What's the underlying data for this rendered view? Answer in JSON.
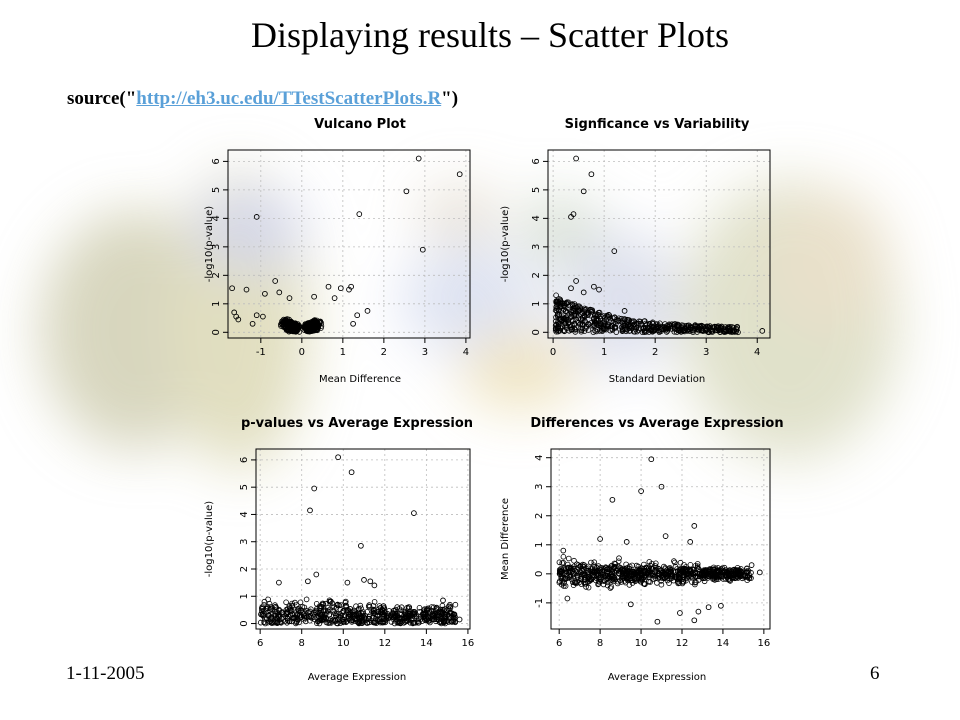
{
  "slide": {
    "title": "Displaying results – Scatter Plots",
    "source_prefix": "source(\"",
    "source_link": "http://eh3.uc.edu/TTestScatterPlots.R",
    "source_suffix": "\")",
    "date": "1-11-2005",
    "page_number": "6"
  },
  "chart_data": [
    {
      "type": "scatter",
      "title": "Vulcano Plot",
      "xlabel": "Mean Difference",
      "ylabel": "-log10(p-value)",
      "xlim": [
        -1.8,
        4.1
      ],
      "ylim": [
        -0.2,
        6.4
      ],
      "xticks": [
        -1,
        0,
        1,
        2,
        3,
        4
      ],
      "yticks": [
        0,
        1,
        2,
        3,
        4,
        5,
        6
      ],
      "grid": true,
      "points": [
        [
          -1.1,
          4.05
        ],
        [
          1.4,
          4.15
        ],
        [
          2.55,
          4.95
        ],
        [
          2.85,
          6.1
        ],
        [
          2.95,
          2.9
        ],
        [
          3.85,
          5.55
        ],
        [
          -1.7,
          1.55
        ],
        [
          -1.35,
          1.5
        ],
        [
          -0.65,
          1.8
        ],
        [
          -0.9,
          1.35
        ],
        [
          -0.55,
          1.4
        ],
        [
          0.65,
          1.6
        ],
        [
          0.95,
          1.55
        ],
        [
          1.15,
          1.5
        ],
        [
          1.2,
          1.6
        ],
        [
          0.3,
          1.25
        ],
        [
          -0.3,
          1.2
        ],
        [
          0.8,
          1.2
        ],
        [
          -1.65,
          0.7
        ],
        [
          -1.6,
          0.55
        ],
        [
          -1.55,
          0.45
        ],
        [
          -1.1,
          0.6
        ],
        [
          -0.95,
          0.55
        ],
        [
          1.6,
          0.75
        ],
        [
          1.35,
          0.6
        ],
        [
          -1.2,
          0.3
        ],
        [
          1.25,
          0.3
        ]
      ]
    },
    {
      "type": "scatter",
      "title": "Signficance vs Variability",
      "xlabel": "Standard Deviation",
      "ylabel": "-log10(p-value)",
      "xlim": [
        -0.1,
        4.25
      ],
      "ylim": [
        -0.2,
        6.4
      ],
      "xticks": [
        0,
        1,
        2,
        3,
        4
      ],
      "yticks": [
        0,
        1,
        2,
        3,
        4,
        5,
        6
      ],
      "grid": true,
      "points": [
        [
          0.45,
          6.1
        ],
        [
          0.75,
          5.55
        ],
        [
          0.6,
          4.95
        ],
        [
          0.35,
          4.05
        ],
        [
          0.4,
          4.15
        ],
        [
          1.2,
          2.85
        ],
        [
          0.45,
          1.8
        ],
        [
          0.35,
          1.55
        ],
        [
          0.8,
          1.6
        ],
        [
          0.9,
          1.5
        ],
        [
          0.6,
          1.4
        ],
        [
          1.4,
          0.75
        ],
        [
          4.1,
          0.05
        ],
        [
          3.6,
          0.1
        ],
        [
          3.4,
          0.05
        ]
      ]
    },
    {
      "type": "scatter",
      "title": "p-values vs Average Expression",
      "xlabel": "Average Expression",
      "ylabel": "-log10(p-value)",
      "xlim": [
        5.8,
        16.1
      ],
      "ylim": [
        -0.2,
        6.4
      ],
      "xticks": [
        6,
        8,
        10,
        12,
        14,
        16
      ],
      "yticks": [
        0,
        1,
        2,
        3,
        4,
        5,
        6
      ],
      "grid": true,
      "points": [
        [
          9.75,
          6.1
        ],
        [
          10.4,
          5.55
        ],
        [
          8.6,
          4.95
        ],
        [
          8.4,
          4.15
        ],
        [
          13.4,
          4.05
        ],
        [
          10.85,
          2.85
        ],
        [
          8.7,
          1.8
        ],
        [
          8.3,
          1.55
        ],
        [
          6.9,
          1.5
        ],
        [
          11.0,
          1.6
        ],
        [
          11.3,
          1.55
        ],
        [
          11.5,
          1.4
        ],
        [
          10.2,
          1.5
        ],
        [
          15.6,
          0.15
        ],
        [
          15.3,
          0.2
        ],
        [
          14.8,
          0.85
        ],
        [
          14.5,
          0.55
        ],
        [
          6.1,
          0.6
        ]
      ]
    },
    {
      "type": "scatter",
      "title": "Differences vs Average Expression",
      "xlabel": "Average Expression",
      "ylabel": "Mean Difference",
      "xlim": [
        5.6,
        16.3
      ],
      "ylim": [
        -1.9,
        4.3
      ],
      "xticks": [
        6,
        8,
        10,
        12,
        14,
        16
      ],
      "yticks": [
        -1,
        0,
        1,
        2,
        3,
        4
      ],
      "grid": true,
      "points": [
        [
          10.5,
          3.95
        ],
        [
          11.0,
          3.0
        ],
        [
          10.0,
          2.85
        ],
        [
          8.6,
          2.55
        ],
        [
          12.6,
          1.65
        ],
        [
          10.8,
          -1.65
        ],
        [
          12.6,
          -1.6
        ],
        [
          11.9,
          -1.35
        ],
        [
          12.8,
          -1.3
        ],
        [
          13.3,
          -1.15
        ],
        [
          13.9,
          -1.1
        ],
        [
          9.5,
          -1.05
        ],
        [
          8.0,
          1.2
        ],
        [
          9.3,
          1.1
        ],
        [
          11.2,
          1.3
        ],
        [
          12.4,
          1.1
        ],
        [
          15.4,
          0.3
        ],
        [
          15.8,
          0.05
        ],
        [
          6.2,
          0.8
        ],
        [
          6.4,
          -0.85
        ]
      ]
    }
  ]
}
